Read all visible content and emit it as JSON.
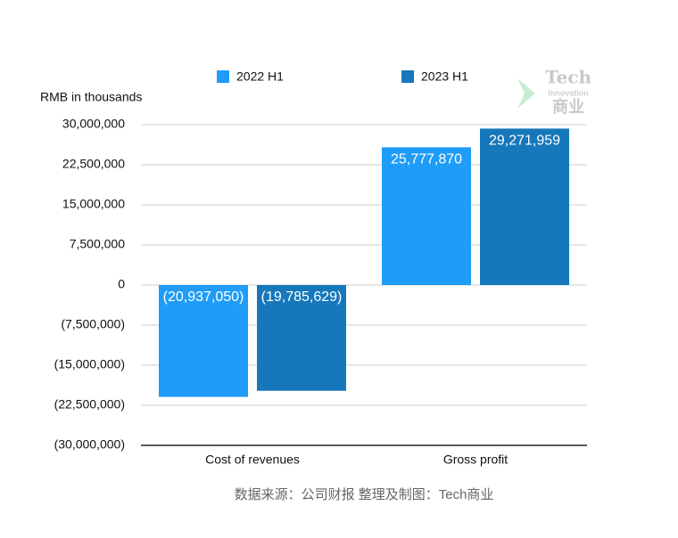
{
  "chart_data": {
    "type": "bar",
    "y_axis_label": "RMB in thousands",
    "categories": [
      "Cost of revenues",
      "Gross profit"
    ],
    "series": [
      {
        "name": "2022 H1",
        "color": "#1f9cf7",
        "values": [
          -20937050,
          25777870
        ],
        "value_labels": [
          "(20,937,050)",
          "25,777,870"
        ]
      },
      {
        "name": "2023 H1",
        "color": "#1677bb",
        "values": [
          -19785629,
          29271959
        ],
        "value_labels": [
          "(19,785,629)",
          "29,271,959"
        ]
      }
    ],
    "ylim": [
      -30000000,
      30000000
    ],
    "yticks": [
      {
        "value": -30000000,
        "label": "(30,000,000)"
      },
      {
        "value": -22500000,
        "label": "(22,500,000)"
      },
      {
        "value": -15000000,
        "label": "(15,000,000)"
      },
      {
        "value": -7500000,
        "label": "(7,500,000)"
      },
      0,
      {
        "value": 7500000,
        "label": "7,500,000"
      },
      {
        "value": 15000000,
        "label": "15,000,000"
      },
      {
        "value": 22500000,
        "label": "22,500,000"
      },
      {
        "value": 30000000,
        "label": "30,000,000"
      }
    ],
    "grid": true,
    "source": "数据来源：公司财报 整理及制图：Tech商业",
    "watermark": [
      "Tech",
      "Innovation",
      "商业"
    ]
  }
}
